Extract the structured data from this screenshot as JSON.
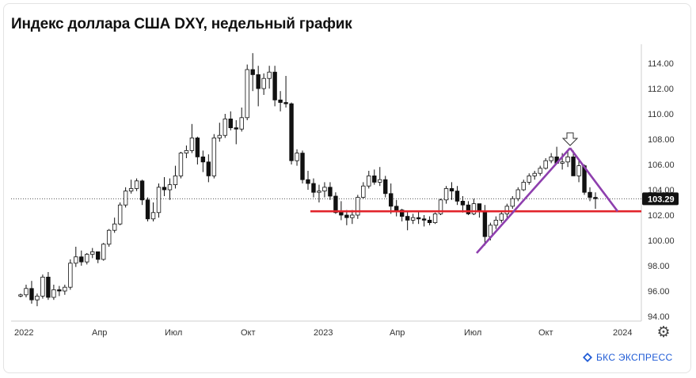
{
  "title": "Индекс доллара США DXY, недельный график",
  "brand": {
    "text": "БКС ЭКСПРЕСС",
    "icon": "bcs-logo-icon",
    "color": "#1f5bd6"
  },
  "settings_icon": "gear-icon",
  "chart_data": {
    "type": "candlestick",
    "y_ticks": [
      "114.00",
      "112.00",
      "110.00",
      "108.00",
      "106.00",
      "104.00",
      "102.00",
      "100.00",
      "98.00",
      "96.00",
      "94.00"
    ],
    "ylim": [
      94,
      115.5
    ],
    "x_labels": [
      "2022",
      "Апр",
      "Июл",
      "Окт",
      "2023",
      "Апр",
      "Июл",
      "Окт",
      "2024"
    ],
    "last_price": {
      "label": "103.29",
      "value": 103.29
    },
    "colors": {
      "up": "#ffffff",
      "down": "#111111",
      "wick": "#111111",
      "support": "#e2242b",
      "pattern": "#8e3fae",
      "price_tag": "#111111"
    },
    "grid": false,
    "support_level": 102.3,
    "pattern_lines": [
      {
        "from": [
          "Июл 2023",
          99.0
        ],
        "to": [
          "Окт 2023",
          107.3
        ]
      },
      {
        "from": [
          "Окт 2023",
          107.3
        ],
        "to": [
          "Дек 2023",
          102.3
        ]
      }
    ],
    "marker": "down-arrow at Oct 2023 peak",
    "candles": [
      [
        95.6,
        95.8,
        95.5,
        95.7
      ],
      [
        95.7,
        96.5,
        95.5,
        96.2
      ],
      [
        96.2,
        96.8,
        95.0,
        95.3
      ],
      [
        95.3,
        95.8,
        94.8,
        95.6
      ],
      [
        95.6,
        97.3,
        95.4,
        97.1
      ],
      [
        97.1,
        97.5,
        95.3,
        95.5
      ],
      [
        95.5,
        96.5,
        95.3,
        96.1
      ],
      [
        96.1,
        96.4,
        95.6,
        96.0
      ],
      [
        96.0,
        96.5,
        95.7,
        96.3
      ],
      [
        96.3,
        98.5,
        96.1,
        98.2
      ],
      [
        98.2,
        99.5,
        97.9,
        98.7
      ],
      [
        98.7,
        99.2,
        98.0,
        98.3
      ],
      [
        98.3,
        99.0,
        98.1,
        98.9
      ],
      [
        98.9,
        99.4,
        98.6,
        99.1
      ],
      [
        99.1,
        99.0,
        98.2,
        98.5
      ],
      [
        98.5,
        99.8,
        98.4,
        99.7
      ],
      [
        99.7,
        100.9,
        99.5,
        100.8
      ],
      [
        100.8,
        101.8,
        100.6,
        101.3
      ],
      [
        101.3,
        103.0,
        101.2,
        102.8
      ],
      [
        102.8,
        104.2,
        102.6,
        103.9
      ],
      [
        103.9,
        104.8,
        103.7,
        104.1
      ],
      [
        104.1,
        104.9,
        103.9,
        104.7
      ],
      [
        104.7,
        104.8,
        102.8,
        103.2
      ],
      [
        103.2,
        103.4,
        101.5,
        101.7
      ],
      [
        101.7,
        103.0,
        101.5,
        102.2
      ],
      [
        102.2,
        104.5,
        101.8,
        104.2
      ],
      [
        104.2,
        105.0,
        103.5,
        104.0
      ],
      [
        104.0,
        104.9,
        103.2,
        104.4
      ],
      [
        104.4,
        105.9,
        104.1,
        105.1
      ],
      [
        105.1,
        107.0,
        104.9,
        106.9
      ],
      [
        106.9,
        107.5,
        106.5,
        107.1
      ],
      [
        107.1,
        109.2,
        106.9,
        108.1
      ],
      [
        108.1,
        108.2,
        106.0,
        106.6
      ],
      [
        106.6,
        107.1,
        105.4,
        106.2
      ],
      [
        106.2,
        106.8,
        104.6,
        105.1
      ],
      [
        105.1,
        108.4,
        104.9,
        108.1
      ],
      [
        108.1,
        109.3,
        107.8,
        108.3
      ],
      [
        108.3,
        110.0,
        108.1,
        109.6
      ],
      [
        109.6,
        110.2,
        108.7,
        108.9
      ],
      [
        108.9,
        109.5,
        107.6,
        108.8
      ],
      [
        108.8,
        110.5,
        108.6,
        109.7
      ],
      [
        109.7,
        113.9,
        109.5,
        113.5
      ],
      [
        113.5,
        114.8,
        111.8,
        113.1
      ],
      [
        113.1,
        113.8,
        110.6,
        112.0
      ],
      [
        112.0,
        113.2,
        111.5,
        112.8
      ],
      [
        112.8,
        113.8,
        112.0,
        113.3
      ],
      [
        113.3,
        113.8,
        110.6,
        111.1
      ],
      [
        111.1,
        111.8,
        110.2,
        110.9
      ],
      [
        110.9,
        113.0,
        110.5,
        110.8
      ],
      [
        110.8,
        110.9,
        106.0,
        106.3
      ],
      [
        106.3,
        107.2,
        105.9,
        106.9
      ],
      [
        106.9,
        107.1,
        104.5,
        104.8
      ],
      [
        104.8,
        105.5,
        104.0,
        104.5
      ],
      [
        104.5,
        104.9,
        103.4,
        103.8
      ],
      [
        103.8,
        104.4,
        103.0,
        103.9
      ],
      [
        103.9,
        104.6,
        103.4,
        104.2
      ],
      [
        104.2,
        104.6,
        103.2,
        103.5
      ],
      [
        103.5,
        103.8,
        102.1,
        102.2
      ],
      [
        102.2,
        103.1,
        101.6,
        102.0
      ],
      [
        102.0,
        102.4,
        101.2,
        101.8
      ],
      [
        101.8,
        102.4,
        101.3,
        102.0
      ],
      [
        102.0,
        103.6,
        101.7,
        103.4
      ],
      [
        103.4,
        104.6,
        103.3,
        104.3
      ],
      [
        104.3,
        105.5,
        104.1,
        105.1
      ],
      [
        105.1,
        105.6,
        104.4,
        104.6
      ],
      [
        104.6,
        105.8,
        104.3,
        104.8
      ],
      [
        104.8,
        105.1,
        103.4,
        103.7
      ],
      [
        103.7,
        104.5,
        102.1,
        102.7
      ],
      [
        102.7,
        103.2,
        101.9,
        102.4
      ],
      [
        102.4,
        102.5,
        101.5,
        101.9
      ],
      [
        101.9,
        102.3,
        100.8,
        101.6
      ],
      [
        101.6,
        102.1,
        101.3,
        101.8
      ],
      [
        101.8,
        102.3,
        101.3,
        101.7
      ],
      [
        101.7,
        102.0,
        101.1,
        101.6
      ],
      [
        101.6,
        101.9,
        101.2,
        101.4
      ],
      [
        101.4,
        102.2,
        101.3,
        102.1
      ],
      [
        102.1,
        103.3,
        102.0,
        103.2
      ],
      [
        103.2,
        104.3,
        102.9,
        104.1
      ],
      [
        104.1,
        104.6,
        103.2,
        103.9
      ],
      [
        103.9,
        104.3,
        102.8,
        103.1
      ],
      [
        103.1,
        103.5,
        102.2,
        102.8
      ],
      [
        102.8,
        103.1,
        102.0,
        102.1
      ],
      [
        102.1,
        103.3,
        102.0,
        102.9
      ],
      [
        102.9,
        102.9,
        101.8,
        102.3
      ],
      [
        102.3,
        102.8,
        99.6,
        100.3
      ],
      [
        100.3,
        101.4,
        100.0,
        101.2
      ],
      [
        101.2,
        101.9,
        100.9,
        101.6
      ],
      [
        101.6,
        102.3,
        101.4,
        102.1
      ],
      [
        102.1,
        102.9,
        101.8,
        102.7
      ],
      [
        102.7,
        103.5,
        102.5,
        103.3
      ],
      [
        103.3,
        104.2,
        103.1,
        104.0
      ],
      [
        104.0,
        104.8,
        103.9,
        104.6
      ],
      [
        104.6,
        105.3,
        104.4,
        105.1
      ],
      [
        105.1,
        105.5,
        104.8,
        105.3
      ],
      [
        105.3,
        105.9,
        105.1,
        105.7
      ],
      [
        105.7,
        106.5,
        105.6,
        106.3
      ],
      [
        106.3,
        106.9,
        106.1,
        106.6
      ],
      [
        106.6,
        107.4,
        106.2,
        106.1
      ],
      [
        106.1,
        106.9,
        105.6,
        106.2
      ],
      [
        106.2,
        107.0,
        105.8,
        106.6
      ],
      [
        106.6,
        107.1,
        105.3,
        105.1
      ],
      [
        105.1,
        106.4,
        104.6,
        105.9
      ],
      [
        105.9,
        106.0,
        103.6,
        103.8
      ],
      [
        103.8,
        104.2,
        103.1,
        103.4
      ],
      [
        103.4,
        103.8,
        102.5,
        103.3
      ]
    ]
  }
}
